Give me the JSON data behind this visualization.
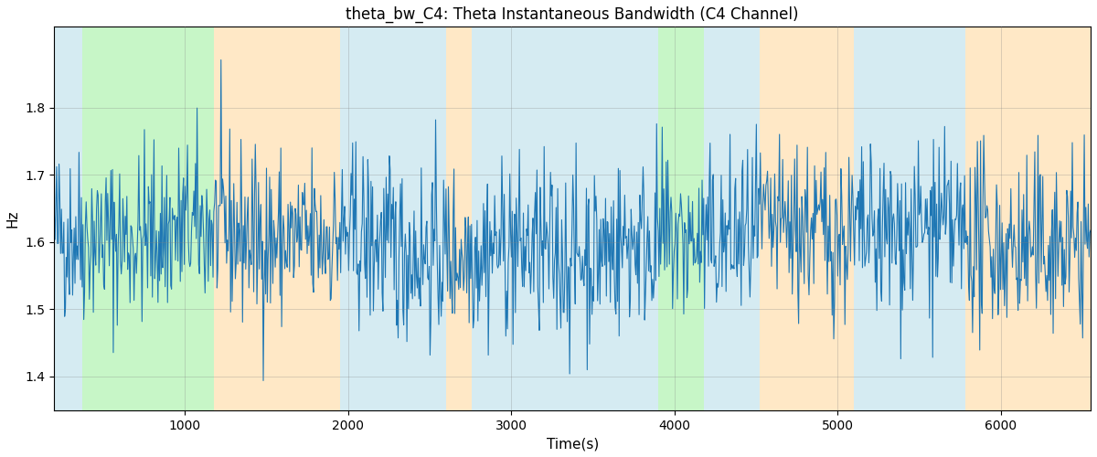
{
  "title": "theta_bw_C4: Theta Instantaneous Bandwidth (C4 Channel)",
  "xlabel": "Time(s)",
  "ylabel": "Hz",
  "xlim": [
    200,
    6550
  ],
  "ylim": [
    1.35,
    1.92
  ],
  "line_color": "#1f77b4",
  "line_width": 0.8,
  "bg_regions": [
    {
      "xmin": 200,
      "xmax": 370,
      "color": "#add8e6",
      "alpha": 0.5
    },
    {
      "xmin": 370,
      "xmax": 1180,
      "color": "#90EE90",
      "alpha": 0.5
    },
    {
      "xmin": 1180,
      "xmax": 1950,
      "color": "#ffd9a0",
      "alpha": 0.6
    },
    {
      "xmin": 1950,
      "xmax": 2600,
      "color": "#add8e6",
      "alpha": 0.5
    },
    {
      "xmin": 2600,
      "xmax": 2760,
      "color": "#ffd9a0",
      "alpha": 0.6
    },
    {
      "xmin": 2760,
      "xmax": 3840,
      "color": "#add8e6",
      "alpha": 0.5
    },
    {
      "xmin": 3840,
      "xmax": 3900,
      "color": "#add8e6",
      "alpha": 0.5
    },
    {
      "xmin": 3900,
      "xmax": 4180,
      "color": "#90EE90",
      "alpha": 0.5
    },
    {
      "xmin": 4180,
      "xmax": 4520,
      "color": "#add8e6",
      "alpha": 0.5
    },
    {
      "xmin": 4520,
      "xmax": 5100,
      "color": "#ffd9a0",
      "alpha": 0.6
    },
    {
      "xmin": 5100,
      "xmax": 5780,
      "color": "#add8e6",
      "alpha": 0.5
    },
    {
      "xmin": 5780,
      "xmax": 6550,
      "color": "#ffd9a0",
      "alpha": 0.6
    }
  ],
  "seed": 42,
  "n_points": 1300,
  "t_start": 200,
  "t_end": 6550,
  "signal_mean": 1.6,
  "signal_std": 0.065,
  "title_fontsize": 12,
  "axis_label_fontsize": 11,
  "tick_fontsize": 10
}
